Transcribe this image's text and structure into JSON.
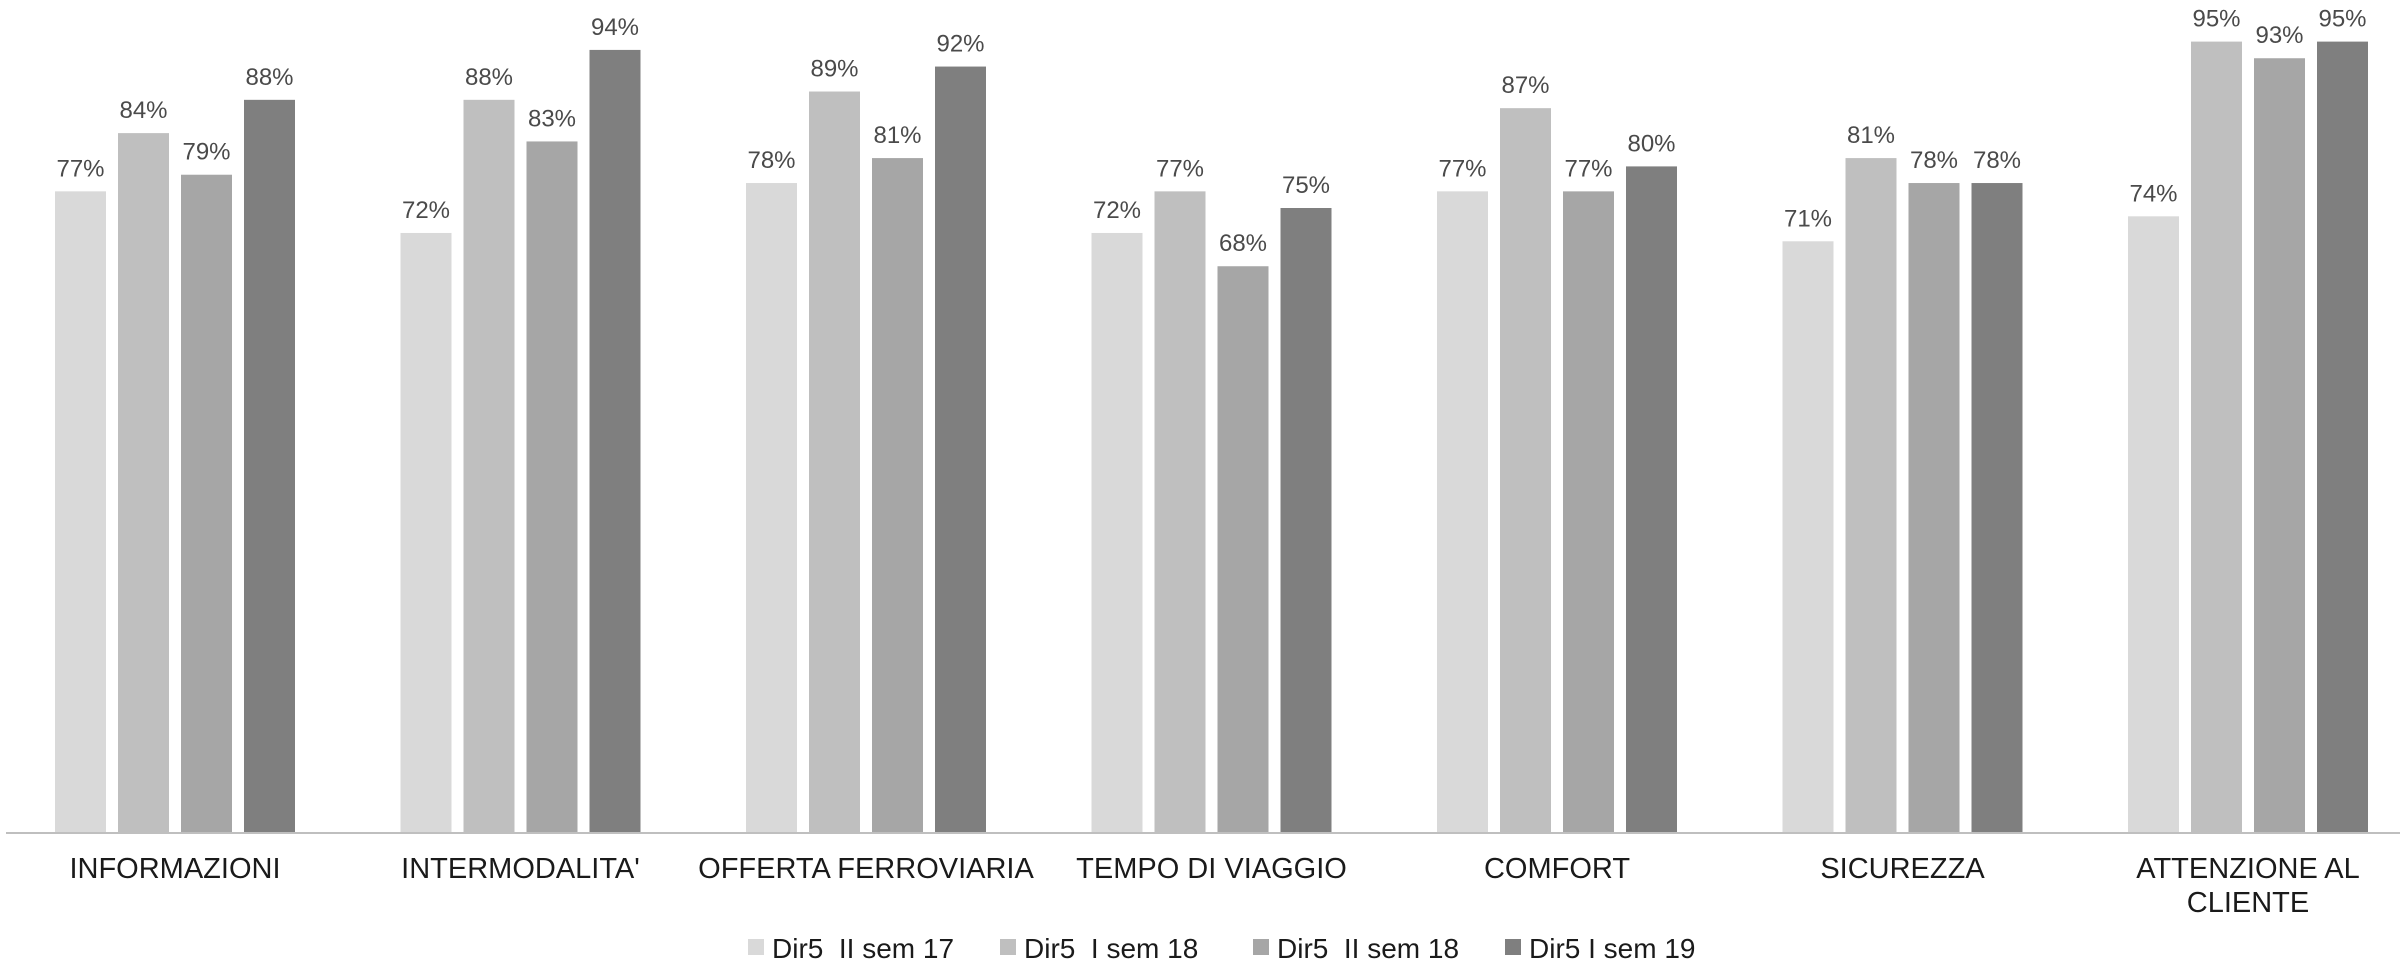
{
  "chart_data": {
    "type": "bar",
    "categories": [
      [
        "INFORMAZIONI"
      ],
      [
        "INTERMODALITA'"
      ],
      [
        "OFFERTA FERROVIARIA"
      ],
      [
        "TEMPO DI VIAGGIO"
      ],
      [
        "COMFORT"
      ],
      [
        "SICUREZZA"
      ],
      [
        "ATTENZIONE AL",
        "CLIENTE"
      ]
    ],
    "series": [
      {
        "name": "Dir5  II sem 17",
        "color": "#d9d9d9",
        "values": [
          77,
          72,
          78,
          72,
          77,
          71,
          74
        ]
      },
      {
        "name": "Dir5  I sem 18",
        "color": "#bfbfbf",
        "values": [
          84,
          88,
          89,
          77,
          87,
          81,
          95
        ]
      },
      {
        "name": "Dir5  II sem 18",
        "color": "#a6a6a6",
        "values": [
          79,
          83,
          81,
          68,
          77,
          78,
          93
        ]
      },
      {
        "name": "Dir5 I sem 19",
        "color": "#7f7f7f",
        "values": [
          88,
          94,
          92,
          75,
          80,
          78,
          95
        ]
      }
    ],
    "value_suffix": "%",
    "ylim": [
      0,
      100
    ],
    "grid": false,
    "legend_position": "bottom",
    "axis_color": "#bfbfbf"
  }
}
